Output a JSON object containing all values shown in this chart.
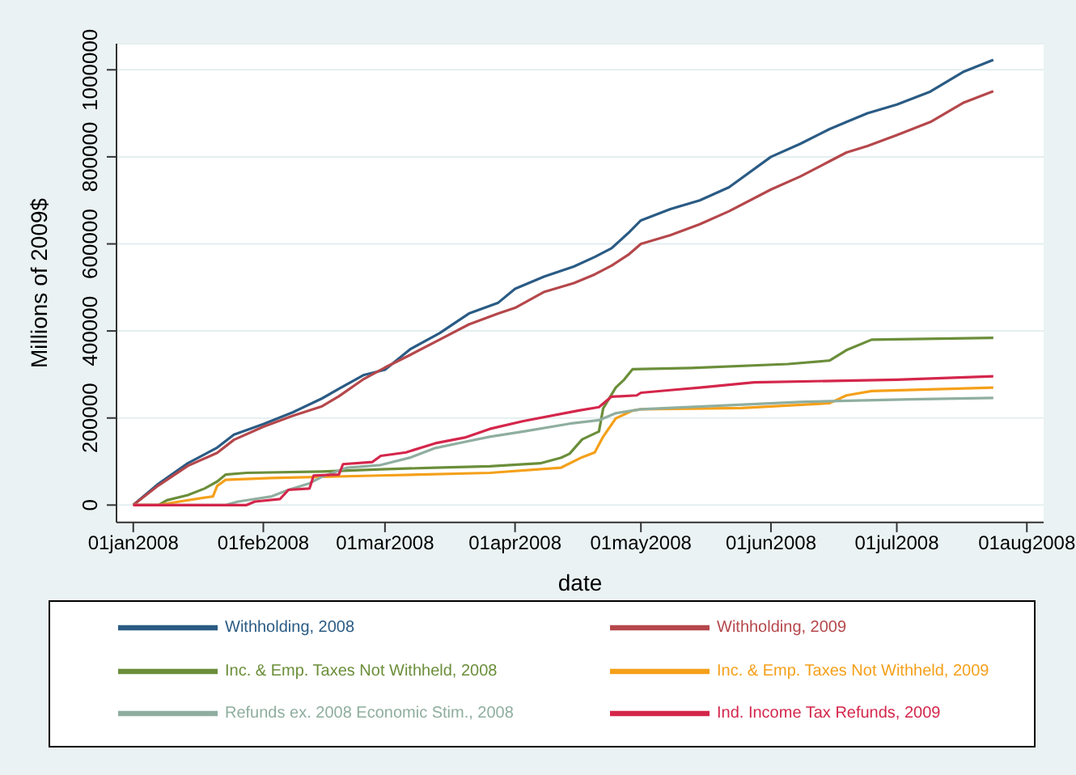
{
  "chart_data": {
    "type": "line",
    "xlabel": "date",
    "ylabel": "Millions of 2009$",
    "xlim": [
      "2007-12-28",
      "2008-08-05"
    ],
    "xticks": [
      {
        "value": "2008-01-01",
        "label": "01jan2008"
      },
      {
        "value": "2008-02-01",
        "label": "01feb2008"
      },
      {
        "value": "2008-03-01",
        "label": "01mar2008"
      },
      {
        "value": "2008-04-01",
        "label": "01apr2008"
      },
      {
        "value": "2008-05-01",
        "label": "01may2008"
      },
      {
        "value": "2008-06-01",
        "label": "01jun2008"
      },
      {
        "value": "2008-07-01",
        "label": "01jul2008"
      },
      {
        "value": "2008-08-01",
        "label": "01aug2008"
      }
    ],
    "ylim": [
      -40000,
      1060000
    ],
    "yticks": [
      0,
      200000,
      400000,
      600000,
      800000,
      1000000
    ],
    "grid": "y",
    "legend": "bottom",
    "marker": "none",
    "line_style": "solid",
    "series": [
      {
        "name": "Withholding, 2008",
        "color": "#2a5b84",
        "x": [
          "2008-01-01",
          "2008-01-07",
          "2008-01-14",
          "2008-01-21",
          "2008-01-25",
          "2008-02-01",
          "2008-02-08",
          "2008-02-15",
          "2008-02-19",
          "2008-02-25",
          "2008-03-01",
          "2008-03-07",
          "2008-03-14",
          "2008-03-21",
          "2008-03-28",
          "2008-04-01",
          "2008-04-08",
          "2008-04-15",
          "2008-04-20",
          "2008-04-24",
          "2008-04-28",
          "2008-05-01",
          "2008-05-08",
          "2008-05-15",
          "2008-05-22",
          "2008-06-01",
          "2008-06-08",
          "2008-06-15",
          "2008-06-19",
          "2008-06-24",
          "2008-07-01",
          "2008-07-09",
          "2008-07-17",
          "2008-07-24"
        ],
        "values": [
          0,
          49000,
          96000,
          132000,
          162000,
          186000,
          213000,
          245000,
          267000,
          299000,
          311000,
          358000,
          395000,
          440000,
          465000,
          497000,
          525000,
          548000,
          570000,
          590000,
          625000,
          654000,
          680000,
          700000,
          730000,
          800000,
          830000,
          864000,
          880000,
          900000,
          920000,
          950000,
          996000,
          1023000
        ]
      },
      {
        "name": "Withholding, 2009",
        "color": "#b5474b",
        "x": [
          "2008-01-01",
          "2008-01-07",
          "2008-01-14",
          "2008-01-21",
          "2008-01-25",
          "2008-02-01",
          "2008-02-08",
          "2008-02-15",
          "2008-02-19",
          "2008-02-25",
          "2008-03-01",
          "2008-03-07",
          "2008-03-14",
          "2008-03-21",
          "2008-03-28",
          "2008-04-01",
          "2008-04-08",
          "2008-04-15",
          "2008-04-20",
          "2008-04-24",
          "2008-04-28",
          "2008-05-01",
          "2008-05-08",
          "2008-05-15",
          "2008-05-22",
          "2008-06-01",
          "2008-06-08",
          "2008-06-15",
          "2008-06-19",
          "2008-06-24",
          "2008-07-01",
          "2008-07-09",
          "2008-07-17",
          "2008-07-24"
        ],
        "values": [
          0,
          45000,
          90000,
          120000,
          150000,
          180000,
          205000,
          227000,
          250000,
          290000,
          316000,
          345000,
          380000,
          415000,
          440000,
          453000,
          490000,
          510000,
          530000,
          550000,
          575000,
          600000,
          620000,
          645000,
          675000,
          725000,
          755000,
          790000,
          810000,
          825000,
          850000,
          880000,
          925000,
          951000
        ]
      },
      {
        "name": "Inc. & Emp. Taxes Not Withheld, 2008",
        "color": "#6b8e3a",
        "x": [
          "2008-01-01",
          "2008-01-07",
          "2008-01-09",
          "2008-01-14",
          "2008-01-18",
          "2008-01-21",
          "2008-01-23",
          "2008-01-28",
          "2008-02-15",
          "2008-02-29",
          "2008-03-13",
          "2008-03-26",
          "2008-04-07",
          "2008-04-12",
          "2008-04-14",
          "2008-04-17",
          "2008-04-21",
          "2008-04-22",
          "2008-04-25",
          "2008-04-27",
          "2008-04-29",
          "2008-05-13",
          "2008-06-05",
          "2008-06-15",
          "2008-06-19",
          "2008-06-25",
          "2008-07-24"
        ],
        "values": [
          0,
          0,
          11000,
          23000,
          38000,
          54000,
          70000,
          74000,
          77000,
          82000,
          86000,
          89000,
          96000,
          109000,
          118000,
          151000,
          169000,
          222000,
          270000,
          288000,
          312000,
          315000,
          324000,
          332000,
          356000,
          380000,
          384000
        ]
      },
      {
        "name": "Inc. & Emp. Taxes Not Withheld, 2009",
        "color": "#f5a01a",
        "x": [
          "2008-01-01",
          "2008-01-07",
          "2008-01-12",
          "2008-01-20",
          "2008-01-21",
          "2008-01-23",
          "2008-02-03",
          "2008-02-29",
          "2008-03-26",
          "2008-04-12",
          "2008-04-17",
          "2008-04-20",
          "2008-04-22",
          "2008-04-25",
          "2008-04-29",
          "2008-05-01",
          "2008-05-25",
          "2008-06-15",
          "2008-06-19",
          "2008-06-25",
          "2008-07-24"
        ],
        "values": [
          0,
          0,
          8000,
          20000,
          44000,
          58000,
          62000,
          68000,
          74000,
          86000,
          110000,
          121000,
          157000,
          199000,
          217000,
          220000,
          223000,
          234000,
          252000,
          262000,
          270000
        ]
      },
      {
        "name": "Refunds ex. 2008 Economic Stim., 2008",
        "color": "#8fae9f",
        "x": [
          "2008-01-01",
          "2008-01-23",
          "2008-01-26",
          "2008-02-03",
          "2008-02-07",
          "2008-02-12",
          "2008-02-15",
          "2008-02-21",
          "2008-02-29",
          "2008-03-07",
          "2008-03-13",
          "2008-03-20",
          "2008-03-26",
          "2008-04-03",
          "2008-04-14",
          "2008-04-21",
          "2008-04-25",
          "2008-05-01",
          "2008-05-19",
          "2008-06-08",
          "2008-07-04",
          "2008-07-24"
        ],
        "values": [
          0,
          0,
          8000,
          20000,
          35000,
          50000,
          65000,
          86000,
          92000,
          109000,
          131000,
          145000,
          157000,
          169000,
          187000,
          195000,
          211000,
          220000,
          228000,
          237000,
          243000,
          246000
        ]
      },
      {
        "name": "Ind. Income Tax Refunds, 2009",
        "color": "#d4264b",
        "x": [
          "2008-01-01",
          "2008-01-28",
          "2008-01-30",
          "2008-02-05",
          "2008-02-07",
          "2008-02-12",
          "2008-02-13",
          "2008-02-19",
          "2008-02-20",
          "2008-02-27",
          "2008-02-29",
          "2008-03-06",
          "2008-03-13",
          "2008-03-20",
          "2008-03-26",
          "2008-04-03",
          "2008-04-16",
          "2008-04-21",
          "2008-04-24",
          "2008-04-30",
          "2008-05-01",
          "2008-05-08",
          "2008-05-15",
          "2008-05-28",
          "2008-07-01",
          "2008-07-24"
        ],
        "values": [
          0,
          0,
          8000,
          14000,
          35000,
          38000,
          68000,
          70000,
          94000,
          99000,
          113000,
          121000,
          142000,
          155000,
          175000,
          193000,
          217000,
          225000,
          249000,
          252000,
          258000,
          264000,
          270000,
          282000,
          288000,
          296000
        ]
      }
    ]
  }
}
